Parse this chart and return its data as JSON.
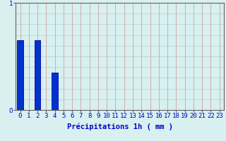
{
  "categories": [
    0,
    1,
    2,
    3,
    4,
    5,
    6,
    7,
    8,
    9,
    10,
    11,
    12,
    13,
    14,
    15,
    16,
    17,
    18,
    19,
    20,
    21,
    22,
    23
  ],
  "values": [
    0.65,
    0.0,
    0.65,
    0.0,
    0.35,
    0.0,
    0.0,
    0.0,
    0.0,
    0.0,
    0.0,
    0.0,
    0.0,
    0.0,
    0.0,
    0.0,
    0.0,
    0.0,
    0.0,
    0.0,
    0.0,
    0.0,
    0.0,
    0.0
  ],
  "bar_color": "#0033cc",
  "bar_edge_color": "#0000aa",
  "background_color": "#d8f0f0",
  "grid_color_v": "#d0a0a0",
  "grid_color_h": "#b0cece",
  "xlabel": "Précipitations 1h ( mm )",
  "xlabel_color": "#0000cc",
  "tick_color": "#0000cc",
  "ylim": [
    0,
    1.0
  ],
  "yticks": [
    0,
    1
  ],
  "xlabel_fontsize": 7.5,
  "tick_fontsize": 6.5,
  "bar_width": 0.7
}
